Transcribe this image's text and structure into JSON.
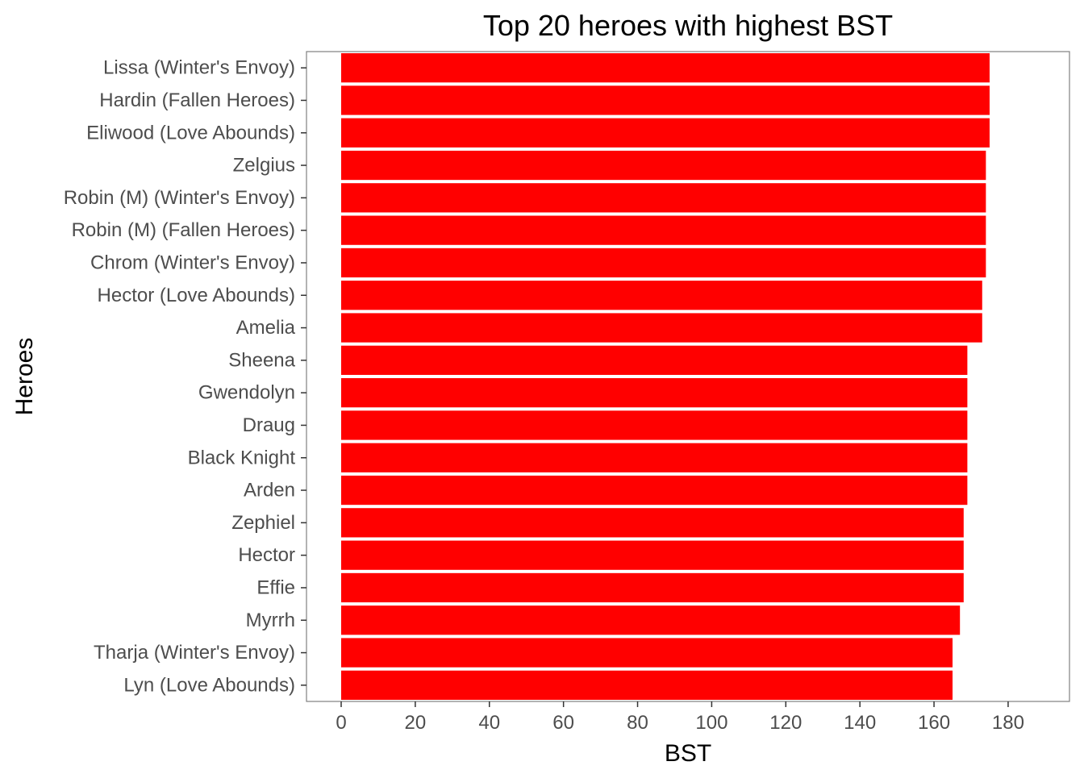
{
  "chart_data": {
    "type": "bar",
    "orientation": "horizontal",
    "title": "Top 20 heroes with highest BST",
    "xlabel": "BST",
    "ylabel": "Heroes",
    "categories": [
      "Lissa (Winter's Envoy)",
      "Hardin (Fallen Heroes)",
      "Eliwood (Love Abounds)",
      "Zelgius",
      "Robin (M) (Winter's Envoy)",
      "Robin (M) (Fallen Heroes)",
      "Chrom (Winter's Envoy)",
      "Hector (Love Abounds)",
      "Amelia",
      "Sheena",
      "Gwendolyn",
      "Draug",
      "Black Knight",
      "Arden",
      "Zephiel",
      "Hector",
      "Effie",
      "Myrrh",
      "Tharja (Winter's Envoy)",
      "Lyn (Love Abounds)"
    ],
    "values": [
      175,
      175,
      175,
      174,
      174,
      174,
      174,
      173,
      173,
      169,
      169,
      169,
      169,
      169,
      168,
      168,
      168,
      167,
      165,
      165
    ],
    "xlim": [
      -9.36,
      196.56
    ],
    "xticks": [
      0,
      20,
      40,
      60,
      80,
      100,
      120,
      140,
      160,
      180
    ],
    "grid": false,
    "legend": "none",
    "bar_color": "#FF0000"
  }
}
